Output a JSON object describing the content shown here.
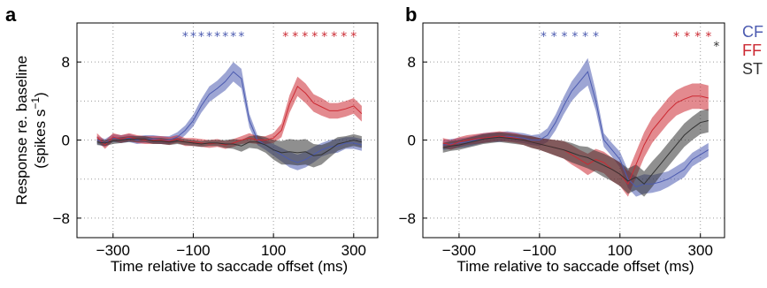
{
  "colors": {
    "CF": "#4c5bb0",
    "FF": "#cc2a33",
    "ST": "#333333"
  },
  "legend": [
    {
      "key": "CF",
      "label": "CF"
    },
    {
      "key": "FF",
      "label": "FF"
    },
    {
      "key": "ST",
      "label": "ST"
    }
  ],
  "chart_data": [
    {
      "type": "line",
      "panel": "a",
      "xlabel": "Time relative to saccade offset (ms)",
      "ylabel": [
        "Response re. baseline",
        "(spikes s",
        "−1",
        ")"
      ],
      "xlim": [
        -390,
        360
      ],
      "ylim": [
        -10,
        12
      ],
      "xticks": [
        -300,
        -100,
        100,
        300
      ],
      "xtick_labels": [
        "−300",
        "−100",
        "100",
        "300"
      ],
      "yticks": [
        -8,
        0,
        8
      ],
      "ytick_labels": [
        "−8",
        "0",
        "8"
      ],
      "grid": true,
      "x": [
        -340,
        -320,
        -300,
        -280,
        -260,
        -240,
        -220,
        -200,
        -180,
        -160,
        -140,
        -120,
        -100,
        -80,
        -60,
        -40,
        -20,
        0,
        20,
        40,
        60,
        80,
        100,
        120,
        140,
        160,
        180,
        200,
        220,
        240,
        260,
        280,
        300,
        320
      ],
      "series": [
        {
          "name": "CF",
          "values": [
            0,
            -0.3,
            0.2,
            0.1,
            0.2,
            0,
            0.1,
            0.1,
            0,
            0,
            0.3,
            1.0,
            2.0,
            3.5,
            4.7,
            5.3,
            6.0,
            7.0,
            6.3,
            2.0,
            0,
            -0.5,
            -1.0,
            -1.5,
            -2.0,
            -2.3,
            -2.0,
            -1.5,
            -1.0,
            -0.7,
            -0.6,
            -0.3,
            -0.3,
            -0.5
          ],
          "err": [
            0.4,
            0.4,
            0.4,
            0.4,
            0.4,
            0.4,
            0.4,
            0.4,
            0.4,
            0.4,
            0.5,
            0.5,
            0.6,
            0.7,
            0.8,
            0.8,
            0.9,
            1.0,
            1.0,
            0.7,
            0.5,
            0.5,
            0.6,
            0.7,
            0.8,
            0.8,
            0.8,
            0.8,
            0.7,
            0.7,
            0.7,
            0.6,
            0.6,
            0.6
          ]
        },
        {
          "name": "FF",
          "values": [
            0.3,
            -0.5,
            0.3,
            0.1,
            0.3,
            0.1,
            0,
            0,
            0,
            -0.1,
            0.1,
            -0.2,
            -0.2,
            -0.3,
            -0.4,
            -0.3,
            -0.5,
            -0.3,
            0,
            0.2,
            0,
            0,
            0.2,
            1.0,
            3.7,
            5.5,
            4.8,
            3.8,
            3.4,
            3.0,
            3.0,
            3.2,
            3.5,
            2.7
          ],
          "err": [
            0.4,
            0.4,
            0.4,
            0.4,
            0.4,
            0.4,
            0.4,
            0.4,
            0.4,
            0.4,
            0.4,
            0.4,
            0.4,
            0.4,
            0.4,
            0.4,
            0.4,
            0.4,
            0.4,
            0.5,
            0.4,
            0.4,
            0.5,
            0.7,
            0.9,
            1.0,
            1.0,
            0.9,
            0.9,
            0.8,
            0.8,
            0.8,
            0.8,
            0.8
          ]
        },
        {
          "name": "ST",
          "values": [
            -0.2,
            -0.3,
            -0.1,
            0,
            0.1,
            0.1,
            0.1,
            -0.1,
            -0.1,
            -0.2,
            -0.1,
            -0.2,
            -0.3,
            -0.4,
            -0.3,
            -0.3,
            -0.4,
            -0.4,
            -0.6,
            -0.2,
            -0.2,
            -0.5,
            -1.0,
            -1.3,
            -1.2,
            -1.3,
            -1.2,
            -1.6,
            -1.5,
            -1.0,
            -0.4,
            -0.2,
            0,
            -0.2
          ],
          "err": [
            0.3,
            0.3,
            0.3,
            0.3,
            0.3,
            0.3,
            0.3,
            0.3,
            0.3,
            0.3,
            0.3,
            0.3,
            0.3,
            0.3,
            0.3,
            0.3,
            0.4,
            0.5,
            0.6,
            0.6,
            0.7,
            0.8,
            1.0,
            1.2,
            1.3,
            1.3,
            1.3,
            1.2,
            1.0,
            0.8,
            0.7,
            0.6,
            0.6,
            0.6
          ]
        }
      ],
      "significance": [
        {
          "series": "CF",
          "text": "********",
          "x_from": -120,
          "x_to": 20,
          "row": 1
        },
        {
          "series": "FF",
          "text": "********",
          "x_from": 130,
          "x_to": 300,
          "row": 1
        }
      ]
    },
    {
      "type": "line",
      "panel": "b",
      "xlabel": "Time relative to saccade offset (ms)",
      "xlim": [
        -390,
        360
      ],
      "ylim": [
        -10,
        12
      ],
      "xticks": [
        -300,
        -100,
        100,
        300
      ],
      "xtick_labels": [
        "−300",
        "−100",
        "100",
        "300"
      ],
      "yticks": [
        -8,
        0,
        8
      ],
      "ytick_labels": [
        "−8",
        "0",
        "8"
      ],
      "grid": true,
      "x": [
        -340,
        -320,
        -300,
        -280,
        -260,
        -240,
        -220,
        -200,
        -180,
        -160,
        -140,
        -120,
        -100,
        -80,
        -60,
        -40,
        -20,
        0,
        20,
        40,
        60,
        80,
        100,
        120,
        140,
        160,
        180,
        200,
        220,
        240,
        260,
        280,
        300,
        320
      ],
      "series": [
        {
          "name": "CF",
          "values": [
            -0.5,
            -0.4,
            -0.3,
            -0.2,
            0,
            0.2,
            0.3,
            0.3,
            0.4,
            0.3,
            0.2,
            0,
            0,
            0.5,
            1.8,
            3.5,
            5.0,
            6.0,
            7.0,
            4.0,
            0,
            -1.0,
            -2.0,
            -4.0,
            -4.8,
            -4.5,
            -4.5,
            -4.3,
            -4.0,
            -3.5,
            -3.0,
            -2.0,
            -1.5,
            -1.0
          ],
          "err": [
            0.5,
            0.5,
            0.5,
            0.5,
            0.5,
            0.5,
            0.5,
            0.5,
            0.5,
            0.5,
            0.5,
            0.5,
            0.6,
            0.7,
            0.8,
            0.9,
            1.0,
            1.1,
            1.4,
            1.0,
            0.7,
            0.7,
            0.8,
            0.9,
            1.0,
            1.0,
            0.9,
            0.9,
            0.8,
            0.8,
            0.8,
            0.7,
            0.7,
            0.7
          ]
        },
        {
          "name": "FF",
          "values": [
            -0.3,
            -0.5,
            -0.2,
            0,
            0.1,
            0.2,
            0.3,
            0.4,
            0.3,
            0.2,
            0,
            -0.2,
            -0.4,
            -0.6,
            -0.8,
            -1.0,
            -1.5,
            -2.0,
            -2.5,
            -2.0,
            -2.3,
            -3.0,
            -3.5,
            -4.5,
            -2.5,
            -0.5,
            1.0,
            2.0,
            3.0,
            3.8,
            4.2,
            4.5,
            4.5,
            4.3
          ],
          "err": [
            0.5,
            0.5,
            0.5,
            0.5,
            0.5,
            0.5,
            0.5,
            0.5,
            0.5,
            0.5,
            0.5,
            0.6,
            0.6,
            0.7,
            0.8,
            0.9,
            1.0,
            1.0,
            1.1,
            1.1,
            1.1,
            1.2,
            1.2,
            1.3,
            1.3,
            1.3,
            1.3,
            1.3,
            1.3,
            1.3,
            1.3,
            1.3,
            1.3,
            1.3
          ]
        },
        {
          "name": "ST",
          "values": [
            -0.8,
            -0.6,
            -0.5,
            -0.3,
            -0.1,
            0.1,
            0.2,
            0.3,
            0.2,
            0.1,
            0,
            -0.2,
            -0.4,
            -0.6,
            -0.8,
            -1.0,
            -1.3,
            -1.6,
            -1.8,
            -2.2,
            -2.6,
            -3.0,
            -3.5,
            -4.2,
            -3.8,
            -4.5,
            -3.5,
            -2.5,
            -1.5,
            -0.5,
            0.5,
            1.2,
            1.8,
            2.0
          ],
          "err": [
            0.5,
            0.5,
            0.5,
            0.5,
            0.5,
            0.5,
            0.5,
            0.5,
            0.5,
            0.5,
            0.5,
            0.6,
            0.6,
            0.7,
            0.8,
            0.9,
            1.0,
            1.0,
            1.1,
            1.1,
            1.2,
            1.2,
            1.2,
            1.3,
            1.3,
            1.3,
            1.3,
            1.2,
            1.2,
            1.2,
            1.2,
            1.2,
            1.2,
            1.2
          ]
        }
      ],
      "significance": [
        {
          "series": "CF",
          "text": "******",
          "x_from": -90,
          "x_to": 40,
          "row": 1
        },
        {
          "series": "FF",
          "text": "****",
          "x_from": 240,
          "x_to": 320,
          "row": 1
        },
        {
          "series": "ST",
          "text": "*",
          "x_from": 340,
          "x_to": 340,
          "row": 2
        }
      ]
    }
  ]
}
